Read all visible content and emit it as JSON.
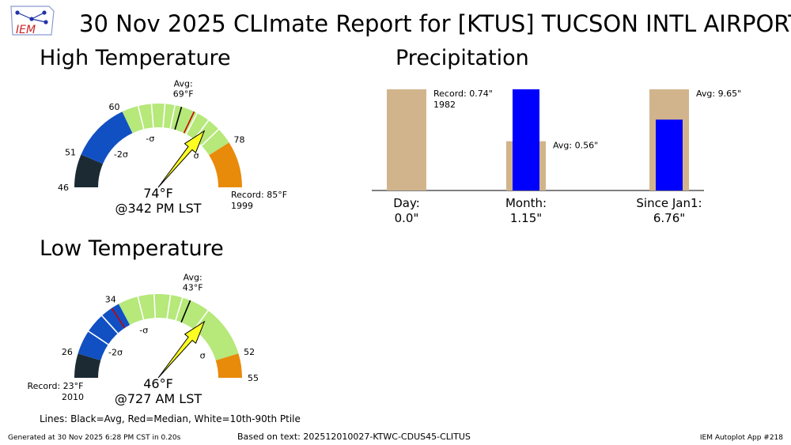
{
  "title": "30 Nov 2025 CLImate Report for [KTUS] TUCSON INTL AIRPORT",
  "logo_text": "IEM",
  "colors": {
    "band_light_green": "#b6e87a",
    "band_blue": "#1150c2",
    "band_dark": "#1c2a33",
    "band_orange": "#e88a0a",
    "needle": "#ffff22",
    "precip_avg": "#d2b48c",
    "precip_obs": "#0000ff",
    "median_line": "#cc0000"
  },
  "chart_data": [
    {
      "type": "gauge",
      "title": "High Temperature",
      "min": 46,
      "max": 85,
      "value": 74,
      "value_label": "74°F",
      "time_label": "@342 PM LST",
      "avg": 69,
      "avg_label": "Avg:",
      "avg_value_label": "69°F",
      "median": 71,
      "ticks": [
        {
          "value": 46,
          "label": "46"
        },
        {
          "value": 51,
          "label": "51"
        },
        {
          "value": 60,
          "label": "60"
        },
        {
          "value": 78,
          "label": "78"
        }
      ],
      "sigma_labels": [
        {
          "value": 55,
          "label": "-2σ"
        },
        {
          "value": 63.5,
          "label": "-σ"
        },
        {
          "value": 76.3,
          "label": "σ"
        }
      ],
      "record_label": "Record: 85°F",
      "record_year": "1999",
      "bands": [
        {
          "from": 46,
          "to": 51,
          "color": "band_dark"
        },
        {
          "from": 51,
          "to": 60,
          "color": "band_blue"
        },
        {
          "from": 60,
          "to": 78,
          "color": "band_light_green"
        },
        {
          "from": 78,
          "to": 85,
          "color": "band_orange"
        }
      ],
      "percentile_lines": [
        62.5,
        64.5,
        66.5,
        68,
        71.5,
        73.5,
        75.5
      ]
    },
    {
      "type": "gauge",
      "title": "Low Temperature",
      "min": 23,
      "max": 55,
      "value": 46,
      "value_label": "46°F",
      "time_label": "@727 AM LST",
      "avg": 43,
      "avg_label": "Avg:",
      "avg_value_label": "43°F",
      "median": 33,
      "ticks": [
        {
          "value": 26,
          "label": "26"
        },
        {
          "value": 34,
          "label": "34"
        },
        {
          "value": 52,
          "label": "52"
        },
        {
          "value": 55,
          "label": "55"
        }
      ],
      "sigma_labels": [
        {
          "value": 28.5,
          "label": "-2σ"
        },
        {
          "value": 36,
          "label": "-σ"
        },
        {
          "value": 50.2,
          "label": "σ"
        }
      ],
      "record_label": "Record: 23°F",
      "record_year": "2010",
      "bands": [
        {
          "from": 23,
          "to": 26,
          "color": "band_dark"
        },
        {
          "from": 26,
          "to": 34,
          "color": "band_blue"
        },
        {
          "from": 34,
          "to": 52,
          "color": "band_light_green"
        },
        {
          "from": 52,
          "to": 55,
          "color": "band_orange"
        }
      ],
      "percentile_lines": [
        29,
        31.5,
        36.5,
        38.5,
        40.5,
        42,
        45.5
      ]
    },
    {
      "type": "bar",
      "title": "Precipitation",
      "categories": [
        "Day:",
        "Month:",
        "Since Jan1:"
      ],
      "observed_labels": [
        "0.0\"",
        "1.15\"",
        "6.76\""
      ],
      "observed": [
        0.0,
        1.15,
        6.76
      ],
      "reference": [
        0.74,
        0.56,
        9.65
      ],
      "reference_labels": [
        "Record: 0.74\"",
        "Avg: 0.56\"",
        "Avg: 9.65\""
      ],
      "reference_year": "1982"
    }
  ],
  "legend_note": "Lines: Black=Avg, Red=Median, White=10th-90th Ptile",
  "footer": {
    "generated": "Generated at 30 Nov 2025 6:28 PM CST in 0.20s",
    "based_on": "Based on text: 202512010027-KTWC-CDUS45-CLITUS",
    "app": "IEM Autoplot App #218"
  }
}
